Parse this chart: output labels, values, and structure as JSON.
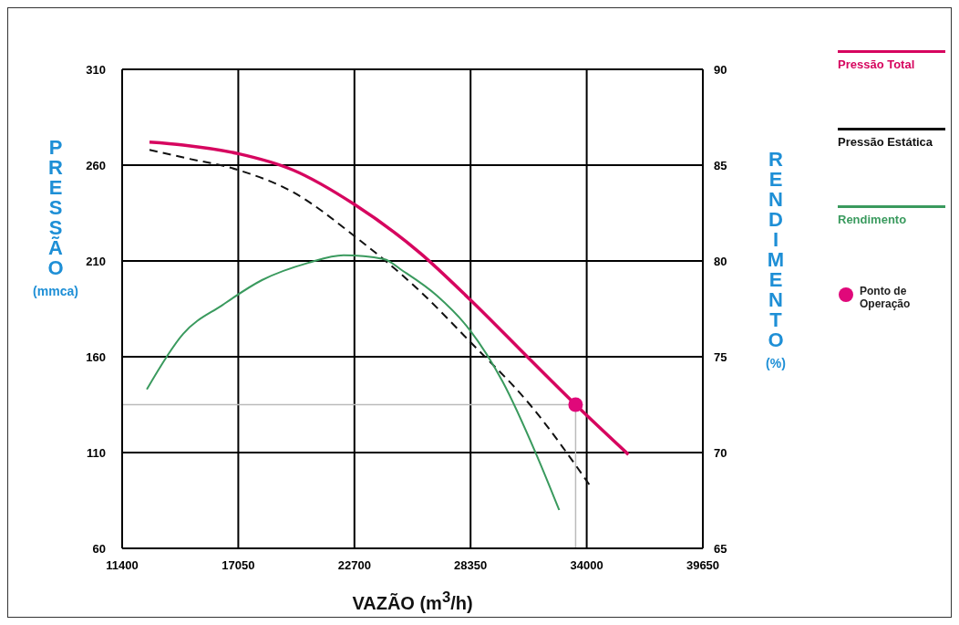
{
  "chart_data": {
    "type": "line",
    "xlabel": "VAZÃO (m$^{3}$/h)",
    "ylabel": "PRESSÃO (mmca)",
    "y2label": "RENDIMENTO (%)",
    "xlim": [
      11400,
      39650
    ],
    "xticks": [
      11400,
      17050,
      22700,
      28350,
      34000,
      39650
    ],
    "ylim": [
      60,
      310
    ],
    "yticks": [
      60,
      110,
      160,
      210,
      260,
      310
    ],
    "y2lim": [
      65,
      90
    ],
    "y2ticks": [
      65,
      70,
      75,
      80,
      85,
      90
    ],
    "grid": true,
    "legend": "right",
    "marker": "none",
    "series": [
      {
        "name": "Pressão Total",
        "color": "#d6065f",
        "line_style": "solid",
        "x": [
          12730,
          14370,
          17040,
          19700,
          22700,
          25910,
          28310,
          31110,
          33460,
          36030
        ],
        "values": [
          272,
          270.5,
          266,
          257.5,
          239.5,
          214,
          190,
          160,
          135,
          109
        ]
      },
      {
        "name": "Pressão Estática",
        "color": "#111111",
        "line_style": "dashed",
        "x": [
          12730,
          14370,
          17040,
          19700,
          22700,
          25910,
          28310,
          31240,
          34210
        ],
        "values": [
          268,
          264,
          257.5,
          246,
          223,
          194,
          168,
          135,
          92
        ]
      },
      {
        "name": "Rendimento",
        "color": "#3a9a5e",
        "line_style": "solid",
        "axis": "y2",
        "x": [
          12600,
          14370,
          16280,
          18200,
          20450,
          22170,
          24140,
          25030,
          26700,
          28310,
          29910,
          31550,
          32660
        ],
        "values": [
          73.3,
          76.2,
          77.7,
          79.0,
          79.9,
          80.3,
          80.1,
          79.5,
          78.2,
          76.4,
          73.7,
          69.9,
          67.0
        ]
      },
      {
        "name": "Ponto de Operação",
        "type": "scatter",
        "marker": "circle",
        "color": "#e0087a",
        "x": [
          33460
        ],
        "values": [
          135
        ]
      }
    ],
    "ref_lines": [
      {
        "axis": "x",
        "value": 33460,
        "color": "#bbbbbb"
      },
      {
        "axis": "y",
        "value": 135,
        "color": "#bbbbbb"
      }
    ]
  }
}
